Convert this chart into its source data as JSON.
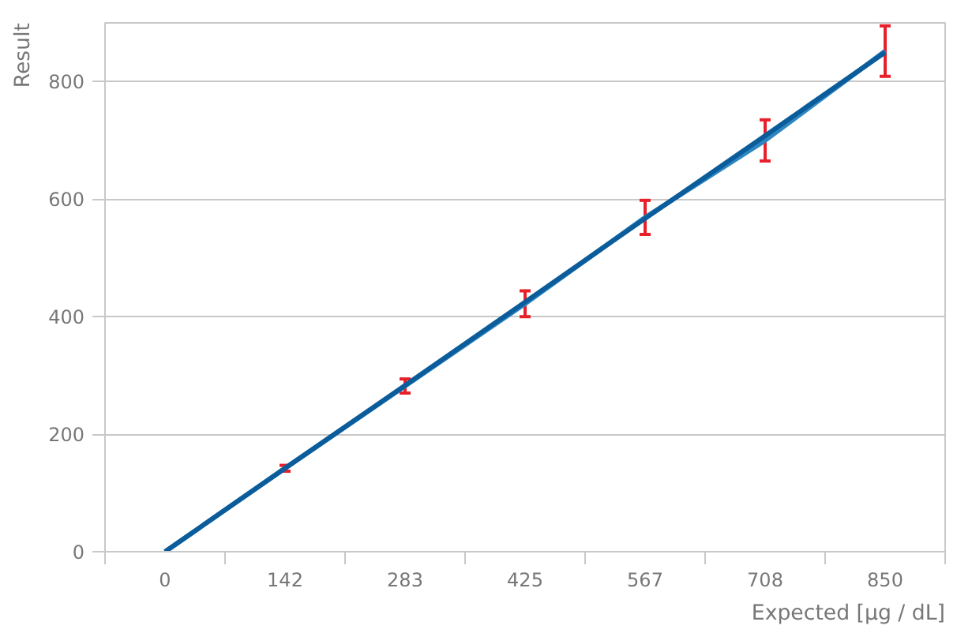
{
  "chart_data": {
    "type": "line",
    "xlabel": "Expected [µg / dL]",
    "ylabel": "Result",
    "categories": [
      "0",
      "142",
      "283",
      "425",
      "567",
      "708",
      "850"
    ],
    "series": [
      {
        "color": "#2e86c1",
        "values": [
          0,
          142,
          282,
          422,
          569,
          700,
          852
        ],
        "errors": [
          null,
          5,
          12,
          22,
          29,
          35,
          43
        ]
      },
      {
        "color": "#0b5c9a",
        "values": [
          0,
          142,
          283,
          425,
          567,
          708,
          850
        ]
      }
    ],
    "ylim": [
      0,
      900
    ],
    "yticks": [
      0,
      200,
      400,
      600,
      800
    ],
    "grid": "y",
    "marker": "none",
    "line_style": "solid"
  }
}
